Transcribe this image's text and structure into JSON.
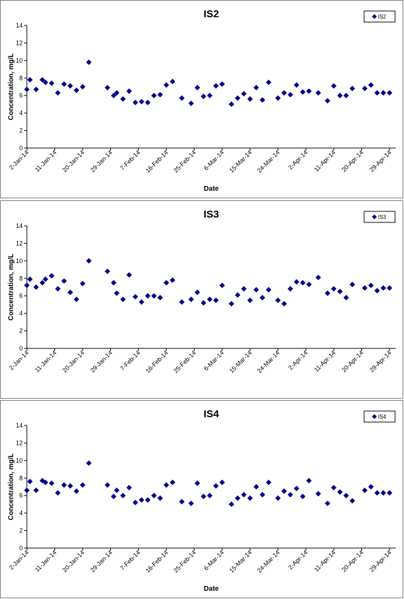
{
  "chart_data": [
    {
      "type": "scatter",
      "title": "IS2",
      "xlabel": "Date",
      "ylabel": "Concentration, mg/L",
      "ylim": [
        0,
        14
      ],
      "yticks": [
        "0",
        "2",
        "4",
        "6",
        "8",
        "10",
        "12",
        "14"
      ],
      "x_ticks": [
        "2-Jan-14",
        "11-Jan-14",
        "20-Jan-14",
        "29-Jan-14",
        "7-Feb-14",
        "16-Feb-14",
        "25-Feb-14",
        "6-Mar-14",
        "15-Mar-14",
        "24-Mar-14",
        "2-Apr-14",
        "11-Apr-14",
        "20-Apr-14",
        "29-Apr-14"
      ],
      "xlim": [
        "2014-01-02",
        "2014-05-01"
      ],
      "grid": false,
      "legend_position": "top-right",
      "marker_color": "#00008b",
      "series": [
        {
          "name": "IS2",
          "x": [
            "2014-01-02",
            "2014-01-03",
            "2014-01-05",
            "2014-01-07",
            "2014-01-08",
            "2014-01-10",
            "2014-01-12",
            "2014-01-14",
            "2014-01-16",
            "2014-01-18",
            "2014-01-20",
            "2014-01-22",
            "2014-01-28",
            "2014-01-30",
            "2014-01-31",
            "2014-02-02",
            "2014-02-04",
            "2014-02-06",
            "2014-02-08",
            "2014-02-10",
            "2014-02-12",
            "2014-02-14",
            "2014-02-16",
            "2014-02-18",
            "2014-02-21",
            "2014-02-24",
            "2014-02-26",
            "2014-02-28",
            "2014-03-02",
            "2014-03-04",
            "2014-03-06",
            "2014-03-09",
            "2014-03-11",
            "2014-03-13",
            "2014-03-15",
            "2014-03-17",
            "2014-03-19",
            "2014-03-21",
            "2014-03-24",
            "2014-03-26",
            "2014-03-28",
            "2014-03-30",
            "2014-04-01",
            "2014-04-03",
            "2014-04-06",
            "2014-04-09",
            "2014-04-11",
            "2014-04-13",
            "2014-04-15",
            "2014-04-17",
            "2014-04-21",
            "2014-04-23",
            "2014-04-25",
            "2014-04-27",
            "2014-04-29"
          ],
          "values": [
            6.7,
            7.8,
            6.7,
            7.8,
            7.5,
            7.4,
            6.3,
            7.3,
            7.1,
            6.6,
            7.0,
            9.8,
            6.9,
            6.0,
            6.3,
            5.6,
            6.5,
            5.2,
            5.3,
            5.2,
            6.0,
            6.1,
            7.2,
            7.6,
            5.7,
            5.1,
            6.9,
            5.9,
            6.0,
            7.1,
            7.3,
            5.0,
            5.7,
            6.2,
            5.6,
            6.9,
            5.5,
            7.5,
            5.7,
            6.3,
            6.1,
            7.2,
            6.4,
            6.5,
            6.3,
            5.4,
            7.1,
            6.0,
            6.0,
            6.8,
            6.8,
            7.2,
            6.3,
            6.3,
            6.3
          ]
        }
      ]
    },
    {
      "type": "scatter",
      "title": "IS3",
      "xlabel": "",
      "ylabel": "Concentration, mg/L",
      "ylim": [
        0,
        14
      ],
      "yticks": [
        "0",
        "2",
        "4",
        "6",
        "8",
        "10",
        "12",
        "14"
      ],
      "x_ticks": [
        "2-Jan-14",
        "11-Jan-14",
        "20-Jan-14",
        "29-Jan-14",
        "7-Feb-14",
        "16-Feb-14",
        "25-Feb-14",
        "6-Mar-14",
        "15-Mar-14",
        "24-Mar-14",
        "2-Apr-14",
        "11-Apr-14",
        "20-Apr-14",
        "29-Apr-14"
      ],
      "xlim": [
        "2014-01-02",
        "2014-05-01"
      ],
      "grid": false,
      "legend_position": "top-right",
      "marker_color": "#00008b",
      "series": [
        {
          "name": "IS3",
          "x": [
            "2014-01-02",
            "2014-01-03",
            "2014-01-05",
            "2014-01-07",
            "2014-01-08",
            "2014-01-10",
            "2014-01-12",
            "2014-01-14",
            "2014-01-16",
            "2014-01-18",
            "2014-01-20",
            "2014-01-22",
            "2014-01-28",
            "2014-01-30",
            "2014-01-31",
            "2014-02-02",
            "2014-02-04",
            "2014-02-06",
            "2014-02-08",
            "2014-02-10",
            "2014-02-12",
            "2014-02-14",
            "2014-02-16",
            "2014-02-18",
            "2014-02-21",
            "2014-02-24",
            "2014-02-26",
            "2014-02-28",
            "2014-03-02",
            "2014-03-04",
            "2014-03-06",
            "2014-03-09",
            "2014-03-11",
            "2014-03-13",
            "2014-03-15",
            "2014-03-17",
            "2014-03-19",
            "2014-03-21",
            "2014-03-24",
            "2014-03-26",
            "2014-03-28",
            "2014-03-30",
            "2014-04-01",
            "2014-04-03",
            "2014-04-06",
            "2014-04-09",
            "2014-04-11",
            "2014-04-13",
            "2014-04-15",
            "2014-04-17",
            "2014-04-21",
            "2014-04-23",
            "2014-04-25",
            "2014-04-27",
            "2014-04-29"
          ],
          "values": [
            7.2,
            7.9,
            7.0,
            7.5,
            7.9,
            8.3,
            6.8,
            7.7,
            6.4,
            5.6,
            7.4,
            10.0,
            8.8,
            7.5,
            6.3,
            5.6,
            8.4,
            5.9,
            5.3,
            6.0,
            6.0,
            5.8,
            7.5,
            7.8,
            5.3,
            5.6,
            6.4,
            5.2,
            5.6,
            5.5,
            7.2,
            5.1,
            6.1,
            6.8,
            5.5,
            6.7,
            5.8,
            6.7,
            5.5,
            5.1,
            6.8,
            7.6,
            7.5,
            7.3,
            8.1,
            6.3,
            6.8,
            6.5,
            5.8,
            7.3,
            6.9,
            7.2,
            6.6,
            6.9,
            6.9
          ]
        }
      ]
    },
    {
      "type": "scatter",
      "title": "IS4",
      "xlabel": "Date",
      "ylabel": "Concentration, mg/L",
      "ylim": [
        0,
        14
      ],
      "yticks": [
        "0",
        "2",
        "4",
        "6",
        "8",
        "10",
        "12",
        "14"
      ],
      "x_ticks": [
        "2-Jan-14",
        "11-Jan-14",
        "20-Jan-14",
        "29-Jan-14",
        "7-Feb-14",
        "16-Feb-14",
        "25-Feb-14",
        "6-Mar-14",
        "15-Mar-14",
        "24-Mar-14",
        "2-Apr-14",
        "11-Apr-14",
        "20-Apr-14",
        "29-Apr-14"
      ],
      "xlim": [
        "2014-01-02",
        "2014-05-01"
      ],
      "grid": false,
      "legend_position": "top-right",
      "marker_color": "#00008b",
      "series": [
        {
          "name": "IS4",
          "x": [
            "2014-01-02",
            "2014-01-03",
            "2014-01-05",
            "2014-01-07",
            "2014-01-08",
            "2014-01-10",
            "2014-01-12",
            "2014-01-14",
            "2014-01-16",
            "2014-01-18",
            "2014-01-20",
            "2014-01-22",
            "2014-01-28",
            "2014-01-30",
            "2014-01-31",
            "2014-02-02",
            "2014-02-04",
            "2014-02-06",
            "2014-02-08",
            "2014-02-10",
            "2014-02-12",
            "2014-02-14",
            "2014-02-16",
            "2014-02-18",
            "2014-02-21",
            "2014-02-24",
            "2014-02-26",
            "2014-02-28",
            "2014-03-02",
            "2014-03-04",
            "2014-03-06",
            "2014-03-09",
            "2014-03-11",
            "2014-03-13",
            "2014-03-15",
            "2014-03-17",
            "2014-03-19",
            "2014-03-21",
            "2014-03-24",
            "2014-03-26",
            "2014-03-28",
            "2014-03-30",
            "2014-04-01",
            "2014-04-03",
            "2014-04-06",
            "2014-04-09",
            "2014-04-11",
            "2014-04-13",
            "2014-04-15",
            "2014-04-17",
            "2014-04-21",
            "2014-04-23",
            "2014-04-25",
            "2014-04-27",
            "2014-04-29"
          ],
          "values": [
            6.6,
            7.6,
            6.6,
            7.7,
            7.5,
            7.4,
            6.3,
            7.2,
            7.1,
            6.5,
            7.2,
            9.7,
            7.2,
            5.9,
            6.6,
            6.0,
            6.9,
            5.2,
            5.5,
            5.5,
            6.0,
            5.7,
            7.2,
            7.5,
            5.3,
            5.1,
            7.4,
            5.9,
            6.0,
            7.1,
            7.5,
            5.0,
            5.7,
            6.1,
            5.7,
            7.0,
            6.1,
            7.5,
            5.7,
            6.5,
            6.1,
            6.8,
            5.9,
            7.7,
            6.2,
            5.1,
            6.9,
            6.4,
            6.0,
            5.4,
            6.6,
            7.0,
            6.3,
            6.3,
            6.3
          ]
        }
      ]
    }
  ]
}
